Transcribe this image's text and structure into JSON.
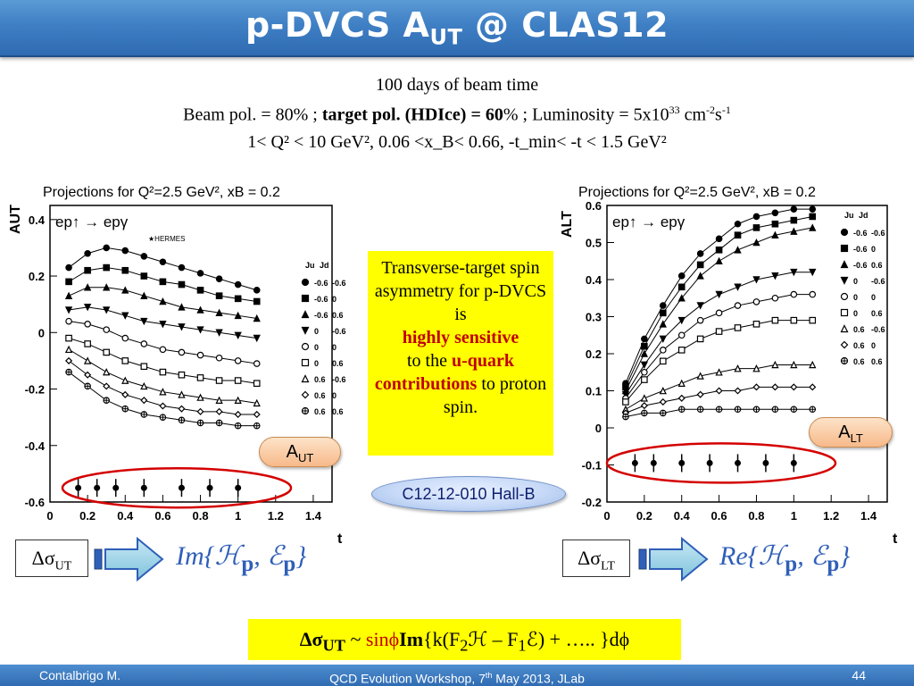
{
  "header": {
    "title": "p-DVCS A",
    "title_sub": "UT",
    "title_rest": " @ CLAS12"
  },
  "info": {
    "line1": "100 days of beam time",
    "line2_a": "Beam pol. = 80% ; ",
    "line2_b": "target pol. (HDIce) = 60",
    "line2_c": "% ; Luminosity = 5x10",
    "line2_exp": "33",
    "line2_d": " cm",
    "line2_exp2": "-2",
    "line2_e": "s",
    "line2_exp3": "-1",
    "line3": "1< Q² < 10 GeV², 0.06 <x_B< 0.66, -t_min< -t < 1.5 GeV²"
  },
  "yellow_box": {
    "t1": "Transverse-target spin asymmetry for p-DVCS is",
    "t2": "highly sensitive",
    "t3": "to the",
    "t4": "u-quark contributions",
    "t5": "to proton spin."
  },
  "badge": {
    "label": "C12-12-010  Hall-B"
  },
  "pills": {
    "aut_main": "A",
    "aut_sub": "UT",
    "alt_main": "A",
    "alt_sub": "LT"
  },
  "sigma": {
    "left_main": "Δσ",
    "left_sub": "UT",
    "right_main": "Δσ",
    "right_sub": "LT"
  },
  "formulas": {
    "left_pre": "Im",
    "right_pre": "Re",
    "body": "{ℋ",
    "p": "p",
    "sep": ", ℰ",
    "close": "}"
  },
  "bottom": {
    "a": "Δσ",
    "a_sub": "UT",
    "b": " ~ ",
    "c": "sinϕ",
    "d": "Im",
    "e": "{k(F",
    "e_sub": "2",
    "f": "ℋ – F",
    "f_sub": "1",
    "g": "ℰ) + ….. }dϕ"
  },
  "footer": {
    "author": "Contalbrigo M.",
    "workshop": "QCD Evolution Workshop, 7",
    "workshop_sup": "th",
    "workshop_rest": " May 2013, JLab",
    "page": "44"
  },
  "colors": {
    "accent_red": "#c00000",
    "yellow": "#ffff00",
    "title_blue": "#3f7fc4"
  },
  "chart_data": [
    {
      "type": "line",
      "title": "Projections for Q²=2.5 GeV², x_B = 0.2",
      "ylabel": "A_UT",
      "xlabel": "t",
      "reaction": "ep↑ → epγ",
      "annotation": "HERMES",
      "xlim": [
        0,
        1.5
      ],
      "ylim": [
        -0.6,
        0.45
      ],
      "xticks": [
        "0",
        "0.2",
        "0.4",
        "0.6",
        "0.8",
        "1",
        "1.2",
        "1.4"
      ],
      "yticks": [
        "0.4",
        "0.2",
        "0",
        "-0.2",
        "-0.4",
        "-0.6"
      ],
      "x": [
        0.1,
        0.2,
        0.3,
        0.4,
        0.5,
        0.6,
        0.7,
        0.8,
        0.9,
        1.0,
        1.1
      ],
      "legend_header": [
        "Ju",
        "Jd"
      ],
      "series": [
        {
          "marker": "filled-circle",
          "legend": [
            "-0.6",
            "-0.6"
          ],
          "values": [
            0.23,
            0.28,
            0.3,
            0.29,
            0.27,
            0.25,
            0.23,
            0.21,
            0.19,
            0.17,
            0.15
          ]
        },
        {
          "marker": "filled-square",
          "legend": [
            "-0.6",
            "0"
          ],
          "values": [
            0.18,
            0.22,
            0.23,
            0.22,
            0.2,
            0.18,
            0.17,
            0.15,
            0.13,
            0.12,
            0.11
          ]
        },
        {
          "marker": "filled-triangle",
          "legend": [
            "-0.6",
            "0.6"
          ],
          "values": [
            0.13,
            0.16,
            0.16,
            0.15,
            0.13,
            0.11,
            0.09,
            0.08,
            0.07,
            0.06,
            0.05
          ]
        },
        {
          "marker": "filled-down-triangle",
          "legend": [
            "0",
            "-0.6"
          ],
          "values": [
            0.08,
            0.09,
            0.08,
            0.06,
            0.04,
            0.03,
            0.02,
            0.01,
            0.0,
            -0.01,
            -0.02
          ]
        },
        {
          "marker": "open-circle",
          "legend": [
            "0",
            "0"
          ],
          "values": [
            0.04,
            0.03,
            0.01,
            -0.02,
            -0.04,
            -0.06,
            -0.07,
            -0.08,
            -0.09,
            -0.1,
            -0.11
          ]
        },
        {
          "marker": "open-square",
          "legend": [
            "0",
            "0.6"
          ],
          "values": [
            -0.02,
            -0.04,
            -0.07,
            -0.1,
            -0.12,
            -0.14,
            -0.15,
            -0.16,
            -0.17,
            -0.17,
            -0.18
          ]
        },
        {
          "marker": "open-triangle",
          "legend": [
            "0.6",
            "-0.6"
          ],
          "values": [
            -0.06,
            -0.1,
            -0.14,
            -0.17,
            -0.19,
            -0.21,
            -0.22,
            -0.23,
            -0.24,
            -0.24,
            -0.25
          ]
        },
        {
          "marker": "open-diamond",
          "legend": [
            "0.6",
            "0"
          ],
          "values": [
            -0.1,
            -0.15,
            -0.19,
            -0.22,
            -0.24,
            -0.26,
            -0.27,
            -0.28,
            -0.28,
            -0.29,
            -0.29
          ]
        },
        {
          "marker": "open-cross",
          "legend": [
            "0.6",
            "0.6"
          ],
          "values": [
            -0.14,
            -0.19,
            -0.24,
            -0.27,
            -0.29,
            -0.3,
            -0.31,
            -0.32,
            -0.32,
            -0.33,
            -0.33
          ]
        }
      ],
      "projected_points": {
        "x": [
          0.15,
          0.25,
          0.35,
          0.5,
          0.7,
          0.85,
          1.0
        ],
        "y": [
          -0.55,
          -0.55,
          -0.55,
          -0.55,
          -0.55,
          -0.55,
          -0.55
        ]
      }
    },
    {
      "type": "line",
      "title": "Projections for Q²=2.5 GeV², x_B = 0.2",
      "ylabel": "A_LT",
      "xlabel": "t",
      "reaction": "ep↑ → epγ",
      "xlim": [
        0,
        1.5
      ],
      "ylim": [
        -0.2,
        0.6
      ],
      "xticks": [
        "0",
        "0.2",
        "0.4",
        "0.6",
        "0.8",
        "1",
        "1.2",
        "1.4"
      ],
      "yticks": [
        "0.6",
        "0.5",
        "0.4",
        "0.3",
        "0.2",
        "0.1",
        "0",
        "-0.1",
        "-0.2"
      ],
      "x": [
        0.1,
        0.2,
        0.3,
        0.4,
        0.5,
        0.6,
        0.7,
        0.8,
        0.9,
        1.0,
        1.1
      ],
      "legend_header": [
        "Ju",
        "Jd"
      ],
      "series": [
        {
          "marker": "filled-circle",
          "legend": [
            "-0.6",
            "-0.6"
          ],
          "values": [
            0.12,
            0.24,
            0.33,
            0.41,
            0.47,
            0.51,
            0.55,
            0.57,
            0.58,
            0.59,
            0.59
          ]
        },
        {
          "marker": "filled-square",
          "legend": [
            "-0.6",
            "0"
          ],
          "values": [
            0.11,
            0.22,
            0.31,
            0.38,
            0.44,
            0.48,
            0.52,
            0.54,
            0.55,
            0.56,
            0.57
          ]
        },
        {
          "marker": "filled-triangle",
          "legend": [
            "-0.6",
            "0.6"
          ],
          "values": [
            0.1,
            0.2,
            0.28,
            0.35,
            0.41,
            0.45,
            0.48,
            0.5,
            0.52,
            0.53,
            0.54
          ]
        },
        {
          "marker": "filled-down-triangle",
          "legend": [
            "0",
            "-0.6"
          ],
          "values": [
            0.09,
            0.17,
            0.24,
            0.29,
            0.33,
            0.36,
            0.38,
            0.4,
            0.41,
            0.42,
            0.42
          ]
        },
        {
          "marker": "open-circle",
          "legend": [
            "0",
            "0"
          ],
          "values": [
            0.08,
            0.15,
            0.21,
            0.25,
            0.29,
            0.31,
            0.33,
            0.34,
            0.35,
            0.36,
            0.36
          ]
        },
        {
          "marker": "open-square",
          "legend": [
            "0",
            "0.6"
          ],
          "values": [
            0.07,
            0.13,
            0.18,
            0.21,
            0.24,
            0.26,
            0.27,
            0.28,
            0.29,
            0.29,
            0.29
          ]
        },
        {
          "marker": "open-triangle",
          "legend": [
            "0.6",
            "-0.6"
          ],
          "values": [
            0.05,
            0.08,
            0.1,
            0.12,
            0.14,
            0.15,
            0.16,
            0.16,
            0.17,
            0.17,
            0.17
          ]
        },
        {
          "marker": "open-diamond",
          "legend": [
            "0.6",
            "0"
          ],
          "values": [
            0.04,
            0.06,
            0.07,
            0.08,
            0.09,
            0.1,
            0.1,
            0.11,
            0.11,
            0.11,
            0.11
          ]
        },
        {
          "marker": "open-cross",
          "legend": [
            "0.6",
            "0.6"
          ],
          "values": [
            0.03,
            0.04,
            0.04,
            0.05,
            0.05,
            0.05,
            0.05,
            0.05,
            0.05,
            0.05,
            0.05
          ]
        }
      ],
      "projected_points": {
        "x": [
          0.15,
          0.25,
          0.4,
          0.55,
          0.7,
          0.85,
          1.0
        ],
        "y": [
          -0.095,
          -0.095,
          -0.095,
          -0.095,
          -0.095,
          -0.095,
          -0.095
        ]
      }
    }
  ]
}
